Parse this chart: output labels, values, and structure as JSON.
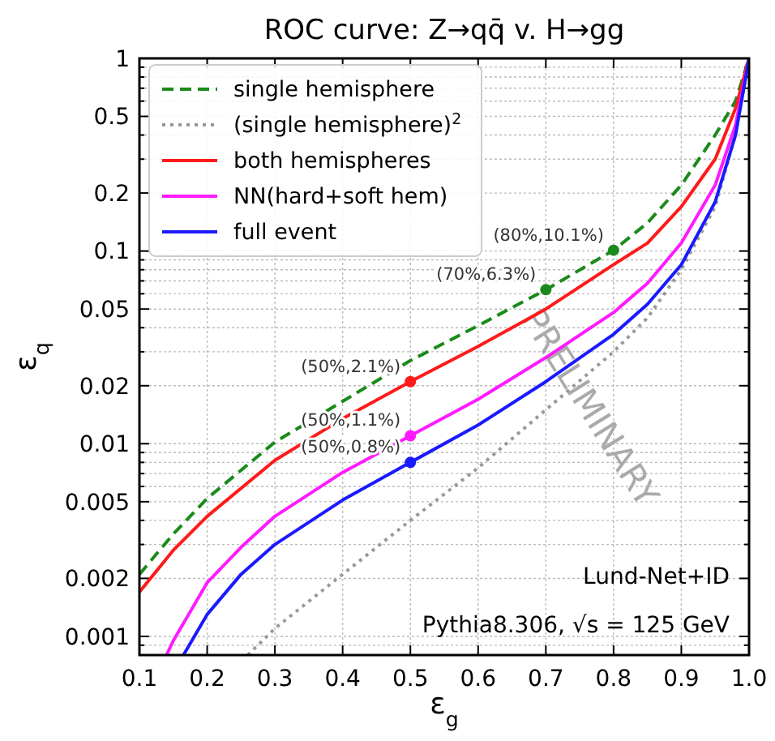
{
  "chart_data": {
    "type": "line",
    "title": "ROC curve: Z→qq̄ v. H→gg",
    "xlabel": "ε$_{g}$",
    "ylabel": "ε$_{q}$",
    "xlim": [
      0.1,
      1.0
    ],
    "xticks": [
      0.1,
      0.2,
      0.3,
      0.4,
      0.5,
      0.6,
      0.7,
      0.8,
      0.9,
      "1.0"
    ],
    "ylim": [
      0.0008,
      1
    ],
    "log": "y",
    "yticks": [
      {
        "value": 0.0009,
        "label": null
      },
      0.001,
      0.002,
      {
        "value": 0.003,
        "label": null
      },
      {
        "value": 0.004,
        "label": null
      },
      0.005,
      {
        "value": 0.006,
        "label": null
      },
      {
        "value": 0.007,
        "label": null
      },
      {
        "value": 0.008,
        "label": null
      },
      {
        "value": 0.009,
        "label": null
      },
      0.01,
      0.02,
      {
        "value": 0.03,
        "label": null
      },
      {
        "value": 0.04,
        "label": null
      },
      0.05,
      {
        "value": 0.06,
        "label": null
      },
      {
        "value": 0.07,
        "label": null
      },
      {
        "value": 0.08,
        "label": null
      },
      {
        "value": 0.09,
        "label": null
      },
      0.1,
      0.2,
      {
        "value": 0.3,
        "label": null
      },
      {
        "value": 0.4,
        "label": null
      },
      0.5,
      {
        "value": 0.6,
        "label": null
      },
      {
        "value": 0.7,
        "label": null
      },
      {
        "value": 0.8,
        "label": null
      },
      {
        "value": 0.9,
        "label": null
      },
      1
    ],
    "grid": true,
    "legend": "top left",
    "series": [
      {
        "name": "single hemisphere",
        "color": "#1a8a1a",
        "line_style": "dashed",
        "x": [
          0.1,
          0.15,
          0.2,
          0.3,
          0.4,
          0.5,
          0.6,
          0.7,
          0.8,
          0.85,
          0.9,
          0.95,
          0.98,
          1.0
        ],
        "values": [
          0.0021,
          0.0034,
          0.0052,
          0.0102,
          0.0166,
          0.027,
          0.041,
          0.063,
          0.101,
          0.14,
          0.22,
          0.4,
          0.6,
          1
        ]
      },
      {
        "name": "(single hemisphere)$^{2}$",
        "color": "#999999",
        "line_style": "dotted",
        "x": [
          0.26,
          0.3,
          0.4,
          0.5,
          0.6,
          0.7,
          0.8,
          0.85,
          0.9,
          0.95,
          0.98,
          1.0
        ],
        "values": [
          0.0008,
          0.0011,
          0.0021,
          0.004,
          0.0075,
          0.015,
          0.03,
          0.045,
          0.08,
          0.17,
          0.4,
          1
        ]
      },
      {
        "name": "both hemispheres",
        "color": "#ff1a1a",
        "line_style": "solid",
        "x": [
          0.1,
          0.15,
          0.2,
          0.3,
          0.4,
          0.5,
          0.6,
          0.7,
          0.8,
          0.85,
          0.9,
          0.95,
          0.98,
          1.0
        ],
        "values": [
          0.0017,
          0.0028,
          0.0042,
          0.0082,
          0.0135,
          0.021,
          0.032,
          0.05,
          0.085,
          0.11,
          0.17,
          0.3,
          0.55,
          1
        ]
      },
      {
        "name": "NN(hard+soft hem)",
        "color": "#ff1aff",
        "line_style": "solid",
        "x": [
          0.14,
          0.15,
          0.2,
          0.25,
          0.3,
          0.4,
          0.5,
          0.6,
          0.7,
          0.8,
          0.85,
          0.9,
          0.95,
          0.98,
          1.0
        ],
        "values": [
          0.0008,
          0.00095,
          0.0019,
          0.0029,
          0.0042,
          0.0071,
          0.011,
          0.017,
          0.028,
          0.048,
          0.068,
          0.11,
          0.22,
          0.45,
          1
        ]
      },
      {
        "name": "full event",
        "color": "#1a1aff",
        "line_style": "solid",
        "x": [
          0.165,
          0.2,
          0.25,
          0.3,
          0.4,
          0.5,
          0.6,
          0.7,
          0.8,
          0.85,
          0.9,
          0.95,
          0.98,
          1.0
        ],
        "values": [
          0.0008,
          0.0013,
          0.0021,
          0.003,
          0.0051,
          0.008,
          0.0125,
          0.021,
          0.037,
          0.053,
          0.085,
          0.18,
          0.4,
          1
        ]
      },
      {
        "type": "scatter",
        "marker": "circle",
        "color": "#1a8a1a",
        "x": [
          0.7,
          0.8
        ],
        "values": [
          0.063,
          0.101
        ]
      },
      {
        "type": "scatter",
        "marker": "circle",
        "color": "#ff1a1a",
        "x": [
          0.5
        ],
        "values": [
          0.021
        ]
      },
      {
        "type": "scatter",
        "marker": "circle",
        "color": "#ff1aff",
        "x": [
          0.5
        ],
        "values": [
          0.011
        ]
      },
      {
        "type": "scatter",
        "marker": "circle",
        "color": "#1a1aff",
        "x": [
          0.5
        ],
        "values": [
          0.008
        ]
      }
    ],
    "annotations": [
      "Lund-Net+ID",
      "Pythia8.306, √s = 125 GeV",
      "PRELIMINARY",
      {
        "text": "(80%,10.1%)",
        "x": 0.8,
        "y": 0.101
      },
      {
        "text": "(70%,6.3%)",
        "x": 0.7,
        "y": 0.063
      },
      {
        "text": "(50%,2.1%)",
        "x": 0.5,
        "y": 0.021
      },
      {
        "text": "(50%,1.1%)",
        "x": 0.5,
        "y": 0.011
      },
      {
        "text": "(50%,0.8%)",
        "x": 0.5,
        "y": 0.008
      }
    ]
  }
}
